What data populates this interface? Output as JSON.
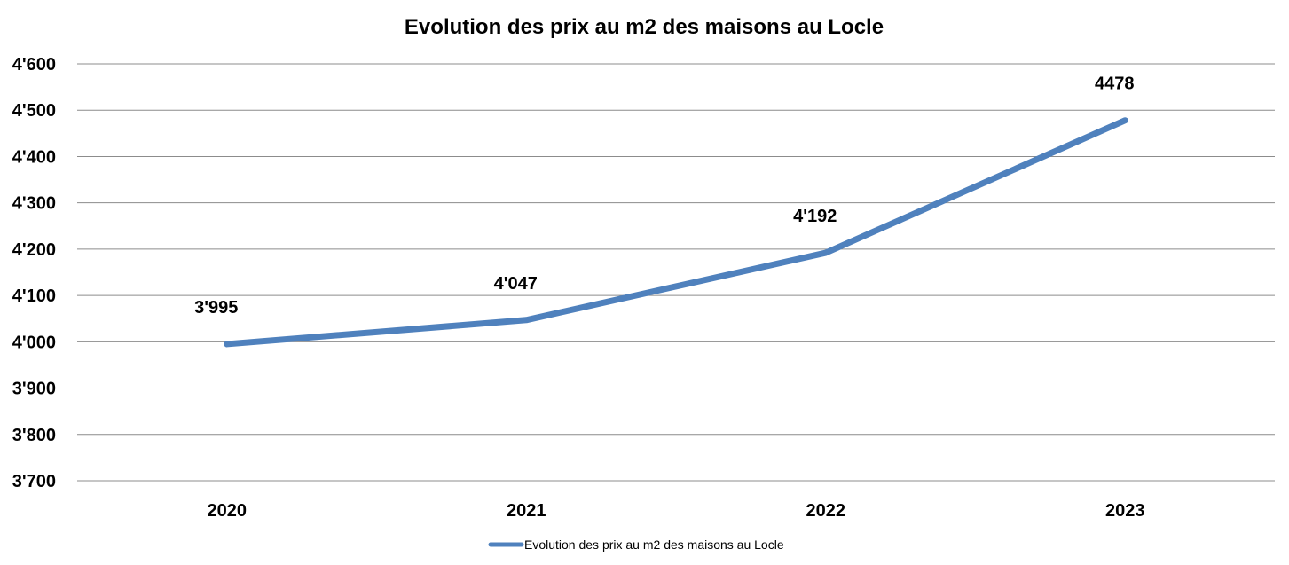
{
  "chart_data": {
    "type": "line",
    "title": "Evolution des prix au m2 des maisons au Locle",
    "categories": [
      "2020",
      "2021",
      "2022",
      "2023"
    ],
    "series": [
      {
        "name": "Evolution des prix au m2 des maisons au Locle",
        "values": [
          3995,
          4047,
          4192,
          4478
        ],
        "data_labels": [
          "3'995",
          "4'047",
          "4'192",
          "4478"
        ],
        "color": "#4f81bd"
      }
    ],
    "ylim": [
      3700,
      4600
    ],
    "yticks": [
      3700,
      3800,
      3900,
      4000,
      4100,
      4200,
      4300,
      4400,
      4500,
      4600
    ],
    "ytick_labels": [
      "3'700",
      "3'800",
      "3'900",
      "4'000",
      "4'100",
      "4'200",
      "4'300",
      "4'400",
      "4'500",
      "4'600"
    ],
    "xlabel": "",
    "ylabel": "",
    "grid": true,
    "legend_position": "bottom"
  }
}
